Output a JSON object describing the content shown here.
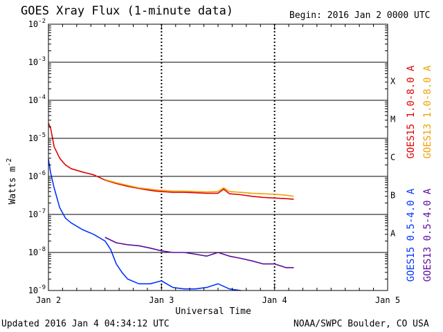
{
  "title": "GOES Xray Flux (1-minute data)",
  "begin": "Begin:  2016 Jan 2 0000 UTC",
  "updated": "Updated 2016 Jan  4 04:34:12 UTC",
  "credit": "NOAA/SWPC Boulder, CO USA",
  "colors": {
    "goes15_long": "#e00000",
    "goes13_long": "#f0a000",
    "goes15_short": "#0033ff",
    "goes13_short": "#5a0aa0"
  },
  "chart_data": {
    "type": "line",
    "title": "GOES Xray Flux (1-minute data)",
    "xlabel": "Universal Time",
    "ylabel": "Watts m",
    "ylabel_sup": "-2",
    "y_scale": "log",
    "ylim_exp": [
      -9,
      -2
    ],
    "xlim_days": [
      0,
      3
    ],
    "x_ticks": [
      {
        "day": 0,
        "label": "Jan 2"
      },
      {
        "day": 1,
        "label": "Jan 3"
      },
      {
        "day": 2,
        "label": "Jan 4"
      },
      {
        "day": 3,
        "label": "Jan 5"
      }
    ],
    "y_ticks": [
      -9,
      -8,
      -7,
      -6,
      -5,
      -4,
      -3,
      -2
    ],
    "flare_classes": [
      {
        "label": "A",
        "exp": -8
      },
      {
        "label": "B",
        "exp": -7
      },
      {
        "label": "C",
        "exp": -6
      },
      {
        "label": "M",
        "exp": -5
      },
      {
        "label": "X",
        "exp": -4
      }
    ],
    "series": [
      {
        "name": "GOES15 1.0-8.0 A",
        "color": "#e00000",
        "x": [
          0.0,
          0.02,
          0.05,
          0.1,
          0.15,
          0.2,
          0.3,
          0.4,
          0.5,
          0.6,
          0.7,
          0.8,
          0.9,
          0.95,
          1.0,
          1.05,
          1.1,
          1.2,
          1.3,
          1.4,
          1.5,
          1.55,
          1.6,
          1.7,
          1.8,
          1.9,
          2.0,
          2.1,
          2.17
        ],
        "y": [
          2.5e-05,
          1.8e-05,
          6e-06,
          3e-06,
          2e-06,
          1.6e-06,
          1.3e-06,
          1.1e-06,
          8e-07,
          6.5e-07,
          5.5e-07,
          4.8e-07,
          4.3e-07,
          4.1e-07,
          4e-07,
          3.9e-07,
          3.8e-07,
          3.8e-07,
          3.7e-07,
          3.6e-07,
          3.6e-07,
          4.6e-07,
          3.5e-07,
          3.3e-07,
          3e-07,
          2.8e-07,
          2.7e-07,
          2.6e-07,
          2.5e-07
        ]
      },
      {
        "name": "GOES13 1.0-8.0 A",
        "color": "#f0a000",
        "x": [
          0.5,
          0.6,
          0.7,
          0.8,
          0.9,
          0.95,
          1.0,
          1.05,
          1.1,
          1.2,
          1.3,
          1.4,
          1.5,
          1.55,
          1.6,
          1.7,
          1.8,
          1.9,
          2.0,
          2.1,
          2.17
        ],
        "y": [
          8.2e-07,
          6.8e-07,
          5.8e-07,
          5e-07,
          4.6e-07,
          4.4e-07,
          4.3e-07,
          4.2e-07,
          4.1e-07,
          4.1e-07,
          4e-07,
          3.9e-07,
          4e-07,
          5e-07,
          4e-07,
          3.8e-07,
          3.6e-07,
          3.5e-07,
          3.4e-07,
          3.2e-07,
          3e-07
        ]
      },
      {
        "name": "GOES15 0.5-4.0 A",
        "color": "#0033ff",
        "x": [
          0.0,
          0.02,
          0.05,
          0.1,
          0.15,
          0.2,
          0.3,
          0.4,
          0.5,
          0.55,
          0.6,
          0.65,
          0.7,
          0.8,
          0.9,
          1.0,
          1.1,
          1.2,
          1.3,
          1.4,
          1.5,
          1.6,
          1.7
        ],
        "y": [
          2.8e-06,
          1.2e-06,
          5e-07,
          1.5e-07,
          8e-08,
          6e-08,
          4e-08,
          3e-08,
          2e-08,
          1.2e-08,
          5e-09,
          3e-09,
          2e-09,
          1.5e-09,
          1.5e-09,
          1.8e-09,
          1.2e-09,
          1.1e-09,
          1.1e-09,
          1.2e-09,
          1.5e-09,
          1.1e-09,
          1e-09
        ]
      },
      {
        "name": "GOES13 0.5-4.0 A",
        "color": "#5a0aa0",
        "x": [
          0.5,
          0.6,
          0.7,
          0.8,
          0.9,
          1.0,
          1.1,
          1.2,
          1.3,
          1.4,
          1.5,
          1.6,
          1.7,
          1.8,
          1.9,
          2.0,
          2.1,
          2.17
        ],
        "y": [
          2.5e-08,
          1.8e-08,
          1.6e-08,
          1.5e-08,
          1.3e-08,
          1.1e-08,
          1e-08,
          1e-08,
          9e-09,
          8e-09,
          1e-08,
          8e-09,
          7e-09,
          6e-09,
          5e-09,
          5e-09,
          4e-09,
          4e-09
        ]
      }
    ]
  }
}
